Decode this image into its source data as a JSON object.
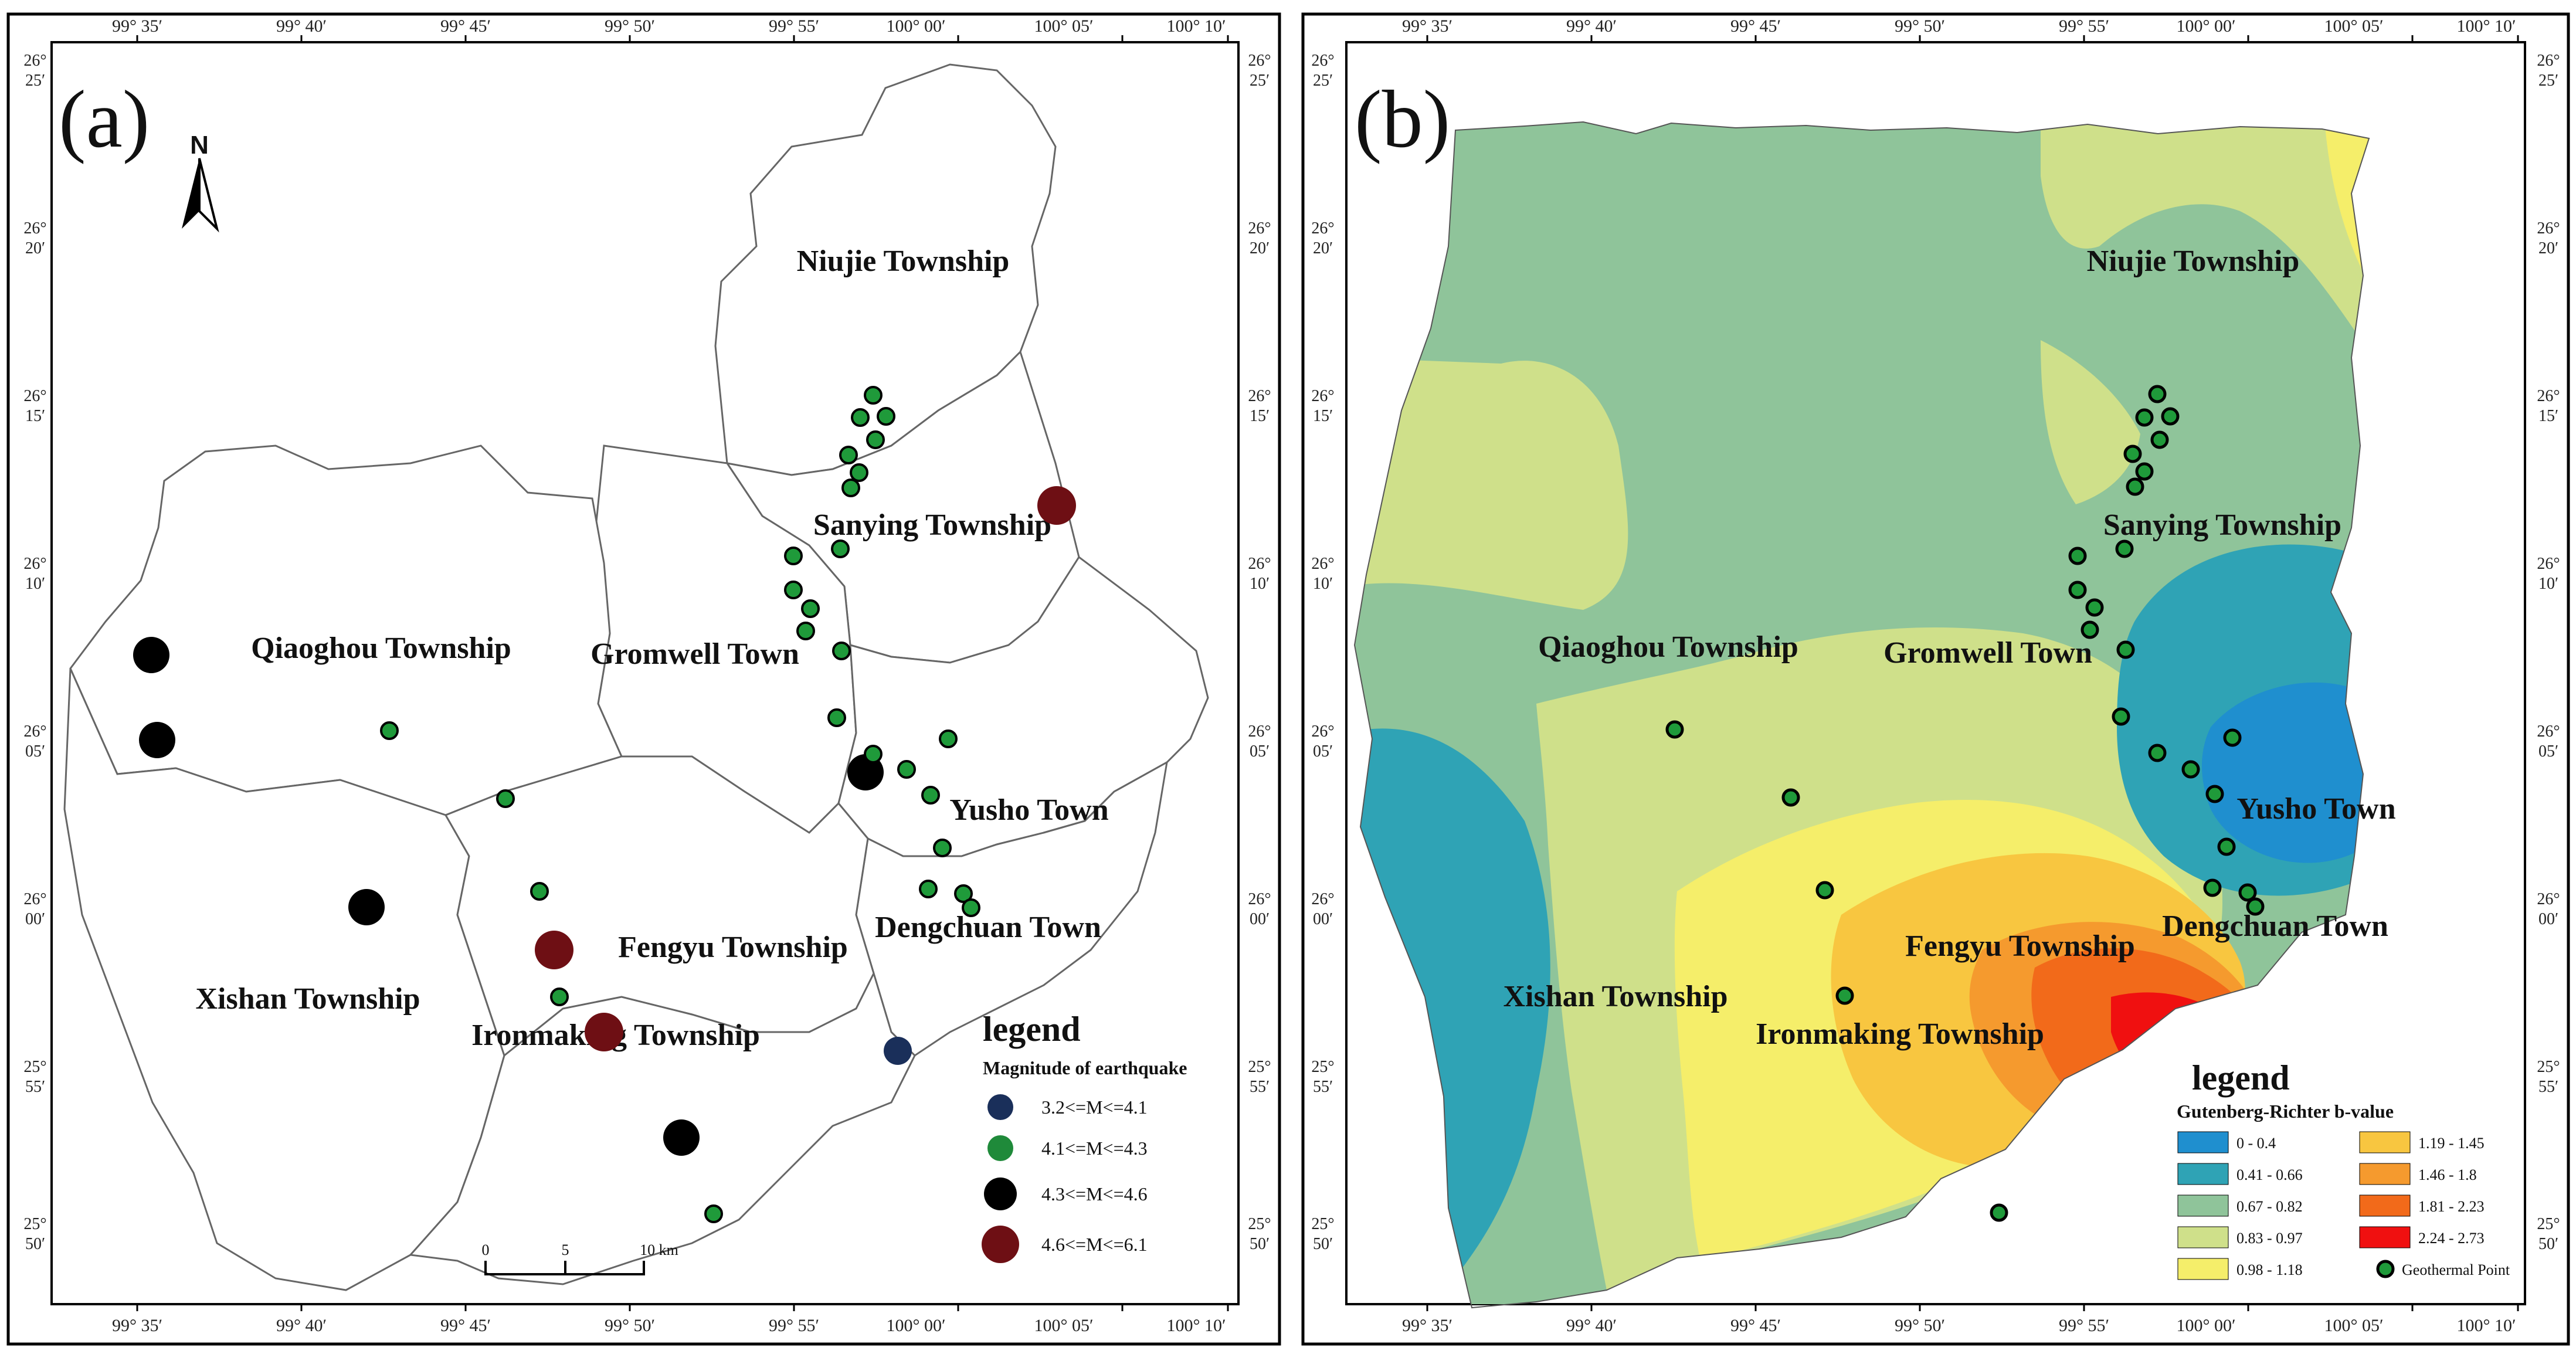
{
  "panels": {
    "a": {
      "tag": "(a)"
    },
    "b": {
      "tag": "(b)"
    }
  },
  "graticule": {
    "lon_labels": [
      "99° 35′",
      "99° 40′",
      "99° 45′",
      "99° 50′",
      "99° 55′",
      "100° 00′",
      "100° 05′",
      "100° 10′"
    ],
    "lat_labels": [
      [
        "26°",
        "25′"
      ],
      [
        "26°",
        "20′"
      ],
      [
        "26°",
        "15′"
      ],
      [
        "26°",
        "10′"
      ],
      [
        "26°",
        "05′"
      ],
      [
        "26°",
        "00′"
      ],
      [
        "25°",
        "55′"
      ],
      [
        "25°",
        "50′"
      ]
    ]
  },
  "places": {
    "niujie": "Niujie Township",
    "sanying": "Sanying Township",
    "qiaoghou": "Qiaoghou Township",
    "gromwell": "Gromwell Town",
    "yusho": "Yusho Town",
    "dengchuan": "Dengchuan Town",
    "fengyu": "Fengyu Township",
    "xishan": "Xishan Township",
    "ironmaking": "Ironmaking Township"
  },
  "north_arrow": {
    "letter": "N"
  },
  "scale_bar": {
    "labels": [
      "0",
      "5",
      "10 km"
    ]
  },
  "legend_a": {
    "title": "legend",
    "subtitle": "Magnitude of earthquake",
    "items": [
      {
        "label": "3.2<=M<=4.1",
        "color": "#1a2f5a"
      },
      {
        "label": "4.1<=M<=4.3",
        "color": "#1f8a3a"
      },
      {
        "label": "4.3<=M<=4.6",
        "color": "#000000"
      },
      {
        "label": "4.6<=M<=6.1",
        "color": "#6e0f14"
      }
    ]
  },
  "legend_b": {
    "title": "legend",
    "subtitle": "Gutenberg-Richter b-value",
    "items": [
      {
        "label": "0 - 0.4",
        "color": "#1f8fcf"
      },
      {
        "label": "0.41 - 0.66",
        "color": "#2fa3b5"
      },
      {
        "label": "0.67 - 0.82",
        "color": "#8fc49a"
      },
      {
        "label": "0.83 - 0.97",
        "color": "#cfe08a"
      },
      {
        "label": "0.98 - 1.18",
        "color": "#f5ee6a"
      },
      {
        "label": "1.19 - 1.45",
        "color": "#f8c640"
      },
      {
        "label": "1.46 - 1.8",
        "color": "#f59a2e"
      },
      {
        "label": "1.81 - 2.23",
        "color": "#f26a1a"
      },
      {
        "label": "2.24 - 2.73",
        "color": "#f01010"
      }
    ],
    "point_label": "Geothermal Point"
  },
  "colors": {
    "geothermal_point": "#1f9a3a",
    "eq_small": "#1a2f5a",
    "eq_mid": "#1f8a3a",
    "eq_large": "#000000",
    "eq_max": "#6e0f14"
  }
}
